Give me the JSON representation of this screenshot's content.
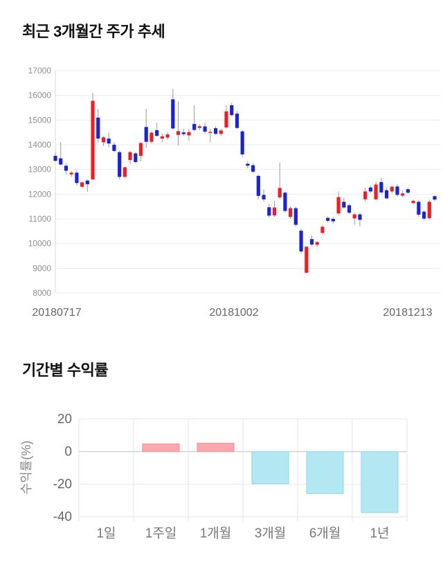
{
  "page": {
    "background": "#ffffff"
  },
  "sections": {
    "price_trend": {
      "title": "최근 3개월간 주가 추세"
    },
    "period_return": {
      "title": "기간별 수익률"
    }
  },
  "chart_data": [
    {
      "type": "candlestick",
      "title": "최근 3개월간 주가 추세",
      "ylim": [
        8000,
        17000
      ],
      "y_ticks": [
        17000,
        16000,
        15000,
        14000,
        13000,
        12000,
        11000,
        10000,
        9000,
        8000
      ],
      "x_tick_labels": [
        "20180717",
        "20181002",
        "20181213"
      ],
      "grid": true,
      "legend": "none",
      "colors": {
        "up": "#eb1f26",
        "down": "#1c24cc",
        "wick": "#999999",
        "grid": "#ececec",
        "axis": "#d8d8d8",
        "y_tick_text": "#8e8e8e",
        "x_tick_text": "#666666"
      },
      "candles_ohlc": [
        [
          13550,
          13700,
          13300,
          13350
        ],
        [
          13450,
          14100,
          13150,
          13200
        ],
        [
          13150,
          13250,
          12800,
          12950
        ],
        [
          12800,
          12950,
          12700,
          12870
        ],
        [
          12870,
          12950,
          12350,
          12450
        ],
        [
          12300,
          12500,
          12250,
          12480
        ],
        [
          12550,
          12600,
          12100,
          12400
        ],
        [
          12600,
          16100,
          12580,
          15780
        ],
        [
          15100,
          15450,
          14100,
          14250
        ],
        [
          14100,
          14350,
          13950,
          14300
        ],
        [
          14250,
          14500,
          13900,
          14050
        ],
        [
          14000,
          14100,
          13700,
          13750
        ],
        [
          13700,
          13750,
          12600,
          12700
        ],
        [
          12700,
          13100,
          12650,
          13090
        ],
        [
          13380,
          13750,
          13200,
          13700
        ],
        [
          13650,
          13700,
          13250,
          13300
        ],
        [
          13550,
          14100,
          13330,
          14070
        ],
        [
          14720,
          15450,
          13880,
          14120
        ],
        [
          14120,
          14550,
          14050,
          14490
        ],
        [
          14590,
          14900,
          14330,
          14360
        ],
        [
          14250,
          14450,
          14100,
          14340
        ],
        [
          14290,
          14500,
          14200,
          14420
        ],
        [
          15840,
          16260,
          14600,
          14660
        ],
        [
          14400,
          15750,
          13980,
          14550
        ],
        [
          14500,
          14650,
          14350,
          14430
        ],
        [
          14380,
          14650,
          14150,
          14510
        ],
        [
          14840,
          15600,
          14550,
          14600
        ],
        [
          14680,
          14830,
          14580,
          14750
        ],
        [
          14740,
          14900,
          14450,
          14530
        ],
        [
          14500,
          14650,
          14100,
          14520
        ],
        [
          14670,
          14750,
          14400,
          14440
        ],
        [
          14440,
          14650,
          14350,
          14580
        ],
        [
          14700,
          15600,
          14650,
          15350
        ],
        [
          15600,
          15700,
          15150,
          15200
        ],
        [
          15260,
          15380,
          14650,
          14680
        ],
        [
          14540,
          14600,
          13500,
          13610
        ],
        [
          13230,
          13350,
          13050,
          13150
        ],
        [
          13170,
          13250,
          12850,
          12910
        ],
        [
          12740,
          12800,
          11790,
          11930
        ],
        [
          11970,
          12200,
          11700,
          11790
        ],
        [
          11470,
          11600,
          11050,
          11130
        ],
        [
          11140,
          11740,
          11080,
          11460
        ],
        [
          11870,
          13280,
          11800,
          12250
        ],
        [
          12060,
          12100,
          11250,
          11320
        ],
        [
          11080,
          11500,
          11000,
          11430
        ],
        [
          11430,
          11500,
          10700,
          10760
        ],
        [
          10520,
          10600,
          9600,
          9680
        ],
        [
          8820,
          9900,
          8800,
          9870
        ],
        [
          10180,
          10340,
          9900,
          9960
        ],
        [
          9950,
          10100,
          9850,
          10060
        ],
        [
          10430,
          10750,
          10350,
          10680
        ],
        [
          11040,
          11100,
          10850,
          10920
        ],
        [
          11000,
          11080,
          10800,
          10900
        ],
        [
          11220,
          12110,
          11150,
          11880
        ],
        [
          11690,
          11850,
          11420,
          11460
        ],
        [
          11550,
          11600,
          11200,
          11250
        ],
        [
          11020,
          11250,
          10760,
          11180
        ],
        [
          11180,
          11250,
          10700,
          10960
        ],
        [
          11790,
          12250,
          11700,
          12110
        ],
        [
          12270,
          12350,
          12050,
          12110
        ],
        [
          11790,
          12500,
          11750,
          12390
        ],
        [
          12490,
          12670,
          12000,
          12070
        ],
        [
          12160,
          12250,
          11800,
          11830
        ],
        [
          12110,
          12350,
          12050,
          12300
        ],
        [
          12310,
          12400,
          11900,
          11970
        ],
        [
          11940,
          12150,
          11880,
          12030
        ],
        [
          12200,
          12250,
          12020,
          12060
        ],
        [
          11640,
          11780,
          11580,
          11730
        ],
        [
          11690,
          11750,
          11080,
          11170
        ],
        [
          11290,
          11350,
          10950,
          11010
        ],
        [
          11030,
          11780,
          10980,
          11690
        ],
        [
          11920,
          11950,
          11700,
          11780
        ]
      ]
    },
    {
      "type": "bar",
      "title": "기간별 수익률",
      "ylabel": "수익률(%)",
      "categories": [
        "1일",
        "1주일",
        "1개월",
        "3개월",
        "6개월",
        "1년"
      ],
      "values": [
        0,
        4.7,
        5.1,
        -19.7,
        -25.7,
        -37.4
      ],
      "y_ticks": [
        20,
        0,
        -20,
        -40
      ],
      "ylim": [
        -40,
        20
      ],
      "grid": true,
      "legend": "none",
      "colors": {
        "positive_fill": "#fba9ae",
        "positive_border": "#f3868f",
        "negative_fill": "#b3e8f3",
        "negative_border": "#87d7e9",
        "grid": "#e6e6e6",
        "zero_line": "#bdbdbd",
        "axis": "#dddddd",
        "tick_text": "#666666",
        "category_text": "#777777",
        "ylabel_text": "#888888"
      }
    }
  ]
}
